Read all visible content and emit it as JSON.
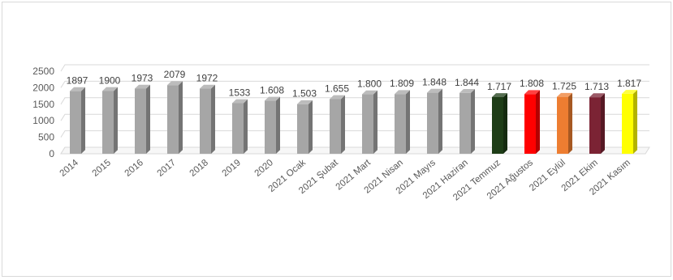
{
  "chart_data": {
    "type": "bar",
    "title": "",
    "xlabel": "",
    "ylabel": "",
    "ylim": [
      0,
      2500
    ],
    "yticks": [
      "0",
      "500",
      "1000",
      "1500",
      "2000",
      "2500"
    ],
    "grid": true,
    "legend": "none",
    "categories": [
      "2014",
      "2015",
      "2016",
      "2017",
      "2018",
      "2019",
      "2020",
      "2021 Ocak",
      "2021 Şubat",
      "2021 Mart",
      "2021 Nisan",
      "2021 Mayıs",
      "2021 Haziran",
      "2021 Temmuz",
      "2021 Ağustos",
      "2021 Eylül",
      "2021 Ekim",
      "2021 Kasım"
    ],
    "values": [
      1897,
      1900,
      1973,
      2079,
      1972,
      1533,
      1608,
      1503,
      1655,
      1800,
      1809,
      1848,
      1844,
      1717,
      1808,
      1725,
      1713,
      1817
    ],
    "data_labels": [
      "1897",
      "1900",
      "1973",
      "2079",
      "1972",
      "1533",
      "1.608",
      "1.503",
      "1.655",
      "1.800",
      "1.809",
      "1.848",
      "1.844",
      "1.717",
      "1.808",
      "1.725",
      "1.713",
      "1.817"
    ],
    "colors": [
      "#a6a6a6",
      "#a6a6a6",
      "#a6a6a6",
      "#a6a6a6",
      "#a6a6a6",
      "#a6a6a6",
      "#a6a6a6",
      "#a6a6a6",
      "#a6a6a6",
      "#a6a6a6",
      "#a6a6a6",
      "#a6a6a6",
      "#a6a6a6",
      "#1e3d17",
      "#ff0000",
      "#ed7d31",
      "#7b2334",
      "#ffff00"
    ]
  }
}
